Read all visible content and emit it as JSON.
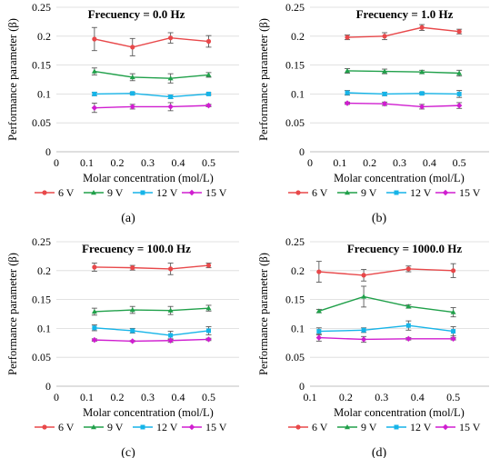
{
  "figure": {
    "ylabel": "Performance parameter (β)",
    "xlabel": "Molar concentration (mol/L)",
    "legend": [
      "6 V",
      "9 V",
      "12 V",
      "15 V"
    ],
    "colors": [
      "#e8484a",
      "#20a04a",
      "#16b4e8",
      "#d01ed0"
    ]
  },
  "chart_data": [
    {
      "type": "line",
      "panel": "(a)",
      "title": "Frecuency = 0.0 Hz",
      "xlabel": "Molar concentration (mol/L)",
      "ylabel": "Performance parameter (β)",
      "x": [
        0.125,
        0.25,
        0.375,
        0.5
      ],
      "xlim": [
        0,
        0.6
      ],
      "ylim": [
        0,
        0.25
      ],
      "xticks": [
        0,
        0.1,
        0.2,
        0.3,
        0.4,
        0.5
      ],
      "xtick_labels": [
        "0",
        "0.1",
        "0.2",
        "0.3",
        "0.4",
        "0.5"
      ],
      "yticks": [
        0,
        0.05,
        0.1,
        0.15,
        0.2,
        0.25
      ],
      "ytick_labels": [
        "0",
        "0.05",
        "0.1",
        "0.15",
        "0.2",
        "0.25"
      ],
      "grid": "horizontal",
      "legend_position": "bottom",
      "series": [
        {
          "name": "6 V",
          "values": [
            0.195,
            0.181,
            0.197,
            0.191
          ],
          "errors": [
            0.02,
            0.015,
            0.009,
            0.01
          ]
        },
        {
          "name": "9 V",
          "values": [
            0.139,
            0.129,
            0.127,
            0.133
          ],
          "errors": [
            0.006,
            0.006,
            0.008,
            0.004
          ]
        },
        {
          "name": "12 V",
          "values": [
            0.1,
            0.101,
            0.095,
            0.1
          ],
          "errors": [
            0.003,
            0.002,
            0.003,
            0.002
          ]
        },
        {
          "name": "15 V",
          "values": [
            0.076,
            0.078,
            0.078,
            0.08
          ],
          "errors": [
            0.008,
            0.004,
            0.007,
            0.002
          ]
        }
      ]
    },
    {
      "type": "line",
      "panel": "(b)",
      "title": "Frecuency = 1.0 Hz",
      "xlabel": "Molar concentration (mol/L)",
      "ylabel": "Performance parameter (β)",
      "x": [
        0.125,
        0.25,
        0.375,
        0.5
      ],
      "xlim": [
        0,
        0.6
      ],
      "ylim": [
        0,
        0.25
      ],
      "xticks": [
        0,
        0.1,
        0.2,
        0.3,
        0.4,
        0.5
      ],
      "xtick_labels": [
        "0",
        "0.1",
        "0.2",
        "0.3",
        "0.4",
        "0.5"
      ],
      "yticks": [
        0,
        0.05,
        0.1,
        0.15,
        0.2,
        0.25
      ],
      "ytick_labels": [
        "0",
        "0.05",
        "0.1",
        "0.15",
        "0.2",
        "0.25"
      ],
      "grid": "horizontal",
      "legend_position": "bottom",
      "series": [
        {
          "name": "6 V",
          "values": [
            0.198,
            0.2,
            0.215,
            0.208
          ],
          "errors": [
            0.004,
            0.006,
            0.005,
            0.004
          ]
        },
        {
          "name": "9 V",
          "values": [
            0.14,
            0.139,
            0.138,
            0.136
          ],
          "errors": [
            0.004,
            0.004,
            0.003,
            0.005
          ]
        },
        {
          "name": "12 V",
          "values": [
            0.102,
            0.1,
            0.101,
            0.1
          ],
          "errors": [
            0.004,
            0.003,
            0.002,
            0.006
          ]
        },
        {
          "name": "15 V",
          "values": [
            0.084,
            0.083,
            0.078,
            0.08
          ],
          "errors": [
            0.002,
            0.003,
            0.004,
            0.005
          ]
        }
      ]
    },
    {
      "type": "line",
      "panel": "(c)",
      "title": "Frecuency = 100.0 Hz",
      "xlabel": "Molar concentration (mol/L)",
      "ylabel": "Performance parameter (β)",
      "x": [
        0.125,
        0.25,
        0.375,
        0.5
      ],
      "xlim": [
        0,
        0.6
      ],
      "ylim": [
        0,
        0.25
      ],
      "xticks": [
        0,
        0.1,
        0.2,
        0.3,
        0.4,
        0.5
      ],
      "xtick_labels": [
        "0",
        "0.1",
        "0.2",
        "0.3",
        "0.4",
        "0.5"
      ],
      "yticks": [
        0,
        0.05,
        0.1,
        0.15,
        0.2,
        0.25
      ],
      "ytick_labels": [
        "0",
        "0.05",
        "0.1",
        "0.15",
        "0.2",
        "0.25"
      ],
      "grid": "horizontal",
      "legend_position": "bottom",
      "series": [
        {
          "name": "6 V",
          "values": [
            0.206,
            0.205,
            0.203,
            0.209
          ],
          "errors": [
            0.007,
            0.004,
            0.01,
            0.004
          ]
        },
        {
          "name": "9 V",
          "values": [
            0.129,
            0.132,
            0.131,
            0.135
          ],
          "errors": [
            0.006,
            0.006,
            0.007,
            0.005
          ]
        },
        {
          "name": "12 V",
          "values": [
            0.101,
            0.096,
            0.088,
            0.096
          ],
          "errors": [
            0.005,
            0.004,
            0.007,
            0.007
          ]
        },
        {
          "name": "15 V",
          "values": [
            0.08,
            0.078,
            0.079,
            0.081
          ],
          "errors": [
            0.002,
            0.001,
            0.003,
            0.002
          ]
        }
      ]
    },
    {
      "type": "line",
      "panel": "(d)",
      "title": "Frecuency = 1000.0 Hz",
      "xlabel": "Molar concentration (mol/L)",
      "ylabel": "Performance parameter (β)",
      "x": [
        0.125,
        0.25,
        0.375,
        0.5
      ],
      "xlim": [
        0.1,
        0.6
      ],
      "ylim": [
        0,
        0.25
      ],
      "xticks": [
        0.1,
        0.2,
        0.3,
        0.4,
        0.5
      ],
      "xtick_labels": [
        "0.1",
        "0.2",
        "0.3",
        "0.4",
        "0.5"
      ],
      "yticks": [
        0,
        0.05,
        0.1,
        0.15,
        0.2,
        0.25
      ],
      "ytick_labels": [
        "0",
        "0.05",
        "0.1",
        "0.15",
        "0.2",
        "0.25"
      ],
      "grid": "horizontal",
      "legend_position": "bottom",
      "series": [
        {
          "name": "6 V",
          "values": [
            0.198,
            0.192,
            0.203,
            0.2
          ],
          "errors": [
            0.018,
            0.01,
            0.005,
            0.012
          ]
        },
        {
          "name": "9 V",
          "values": [
            0.13,
            0.155,
            0.138,
            0.128
          ],
          "errors": [
            0.003,
            0.018,
            0.003,
            0.008
          ]
        },
        {
          "name": "12 V",
          "values": [
            0.095,
            0.097,
            0.105,
            0.095
          ],
          "errors": [
            0.006,
            0.004,
            0.008,
            0.008
          ]
        },
        {
          "name": "15 V",
          "values": [
            0.084,
            0.081,
            0.082,
            0.082
          ],
          "errors": [
            0.006,
            0.005,
            0.002,
            0.002
          ]
        }
      ]
    }
  ]
}
